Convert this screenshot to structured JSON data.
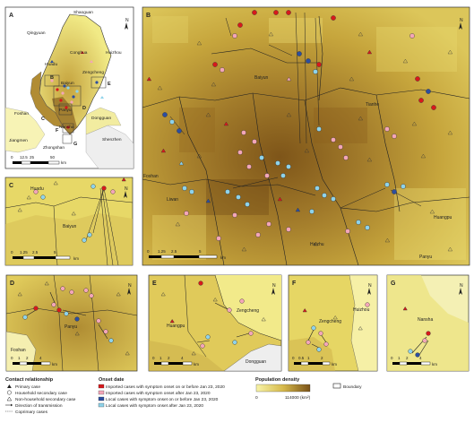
{
  "panels": {
    "a": {
      "letter": "A",
      "places": [
        "Shaoguan",
        "Qingyuan",
        "Conghua",
        "Huizhou",
        "Huadu",
        "Zengcheng",
        "Baiyun",
        "Foshan",
        "Panyu",
        "Dongguan",
        "Nansha",
        "Jiangmen",
        "Zhongshan",
        "Shenzhen"
      ],
      "inset_letters": [
        "B",
        "C",
        "D",
        "E",
        "F",
        "G"
      ],
      "scale_ticks": [
        "0",
        "12.5",
        "25",
        "50"
      ],
      "scale_unit": "km"
    },
    "b": {
      "letter": "B",
      "places": [
        "Baiyun",
        "Tianhe",
        "Foshan",
        "Liwan",
        "Haizhu",
        "Huangpu",
        "Panyu"
      ],
      "scale_ticks": [
        "0",
        "1.25",
        "2.5",
        "5"
      ],
      "scale_unit": "km"
    },
    "c": {
      "letter": "C",
      "places": [
        "Huadu",
        "Baiyun"
      ],
      "scale_ticks": [
        "0",
        "1.25",
        "2.5",
        "5"
      ],
      "scale_unit": "km"
    },
    "d": {
      "letter": "D",
      "places": [
        "Panyu",
        "Foshan"
      ],
      "scale_ticks": [
        "0",
        "1",
        "2",
        "4"
      ],
      "scale_unit": "km"
    },
    "e": {
      "letter": "E",
      "places": [
        "Zengcheng",
        "Huangpu",
        "Dongguan"
      ],
      "scale_ticks": [
        "0",
        "1",
        "2",
        "4"
      ],
      "scale_unit": "km"
    },
    "f": {
      "letter": "F",
      "places": [
        "Huizhou",
        "Zengcheng"
      ],
      "scale_ticks": [
        "0",
        "0.5",
        "1",
        "2"
      ],
      "scale_unit": "km"
    },
    "g": {
      "letter": "G",
      "places": [
        "Nansha"
      ],
      "scale_ticks": [
        "0",
        "1",
        "2",
        "4"
      ],
      "scale_unit": "km"
    }
  },
  "north": "N",
  "legend": {
    "contact_title": "Contact relationship",
    "contact_items": [
      "Primary case",
      "Household secondary case",
      "Non-household secondary case",
      "Direction of transmission",
      "Coprimary cases"
    ],
    "onset_title": "Onset date",
    "onset_items": [
      {
        "label": "Imported cases with symptom onset on or before Jan 23, 2020",
        "color": "#d7191c"
      },
      {
        "label": "Imported cases with symptom onset after Jan 23, 2020",
        "color": "#f4a6b8"
      },
      {
        "label": "Local cases with symptom onset on or before Jan 23, 2020",
        "color": "#2c4ea0"
      },
      {
        "label": "Local cases with symptom onset after Jan 23, 2020",
        "color": "#8fd3ea"
      }
    ],
    "density_title": "Population density",
    "density_min": "0",
    "density_max": "114000 (km²)",
    "boundary_label": "Boundary"
  },
  "colors": {
    "density_low": "#f3ed8c",
    "density_mid": "#d3b447",
    "density_high": "#8c6420"
  }
}
